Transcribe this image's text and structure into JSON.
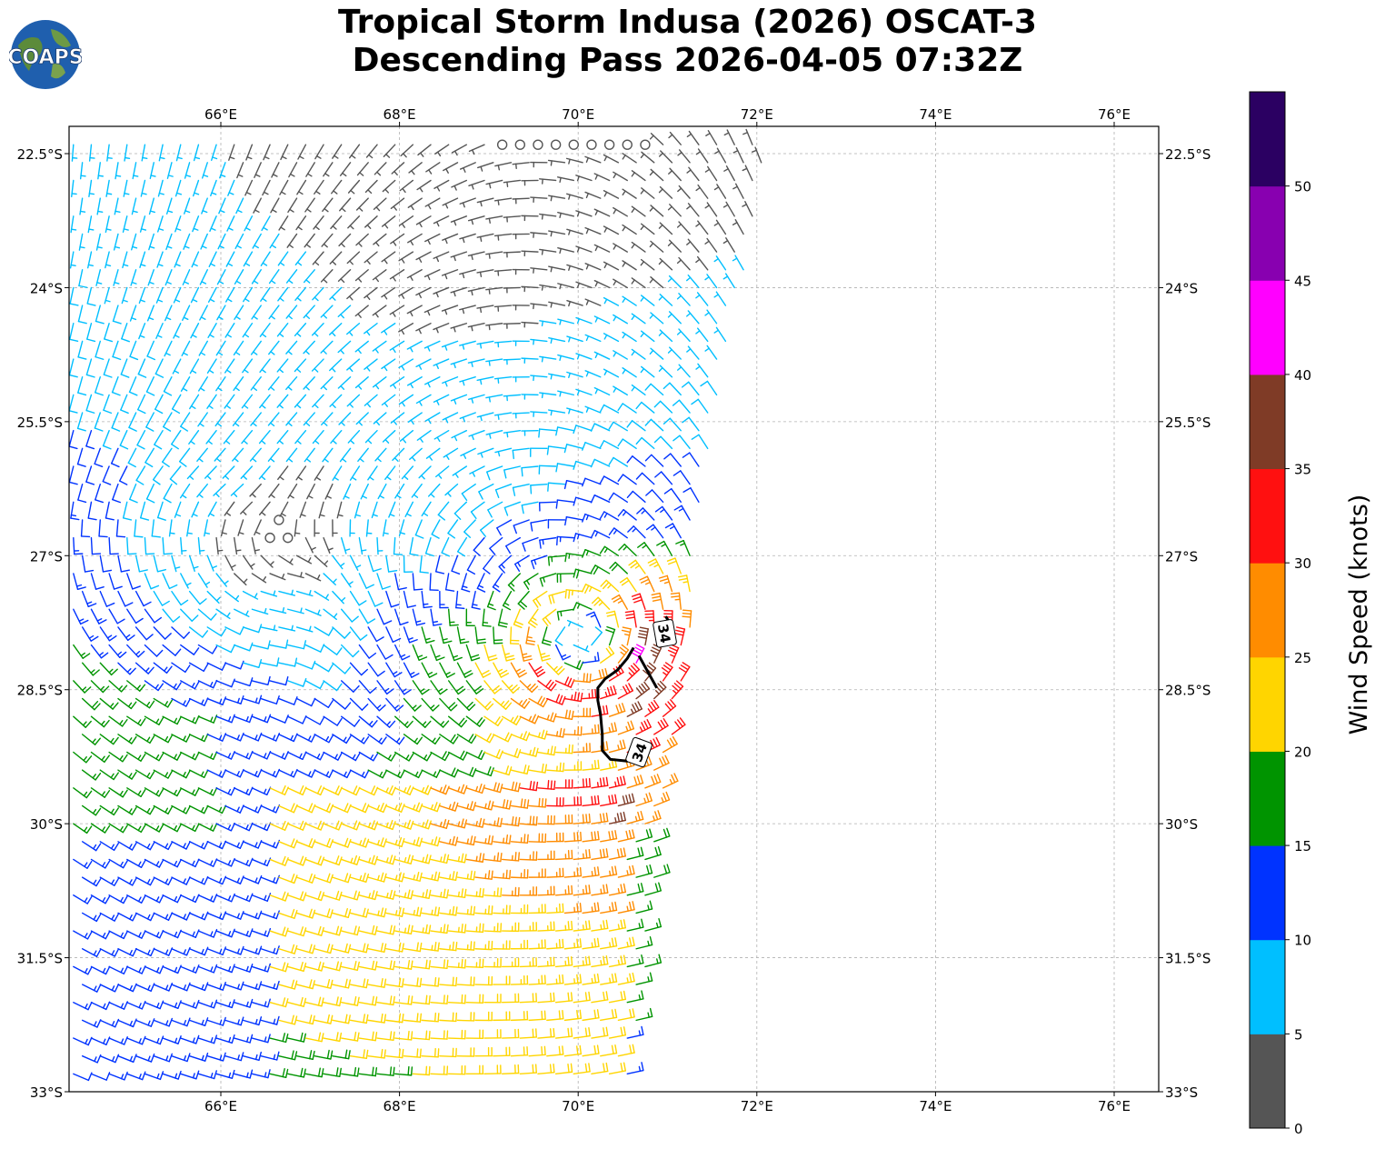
{
  "title": {
    "line1": "Tropical Storm Indusa (2026) OSCAT-3",
    "line2": "Descending Pass 2026-04-05 07:32Z"
  },
  "logo": {
    "text": "COAPS"
  },
  "axes": {
    "lon_ticks": [
      "66°E",
      "68°E",
      "70°E",
      "72°E",
      "74°E",
      "76°E"
    ],
    "lat_ticks": [
      "22.5°S",
      "24°S",
      "25.5°S",
      "27°S",
      "28.5°S",
      "30°S",
      "31.5°S",
      "33°S"
    ],
    "lon_range": [
      64.3,
      76.5
    ],
    "lat_range": [
      -33,
      -22.2
    ],
    "grid": true
  },
  "colorbar": {
    "label": "Wind Speed (knots)",
    "ticks": [
      "0",
      "5",
      "10",
      "15",
      "20",
      "25",
      "30",
      "35",
      "40",
      "45",
      "50"
    ],
    "bins": [
      {
        "min": 0,
        "max": 5,
        "color": "#555555"
      },
      {
        "min": 5,
        "max": 10,
        "color": "#00bfff"
      },
      {
        "min": 10,
        "max": 15,
        "color": "#0033ff"
      },
      {
        "min": 15,
        "max": 20,
        "color": "#009400"
      },
      {
        "min": 20,
        "max": 25,
        "color": "#ffd500"
      },
      {
        "min": 25,
        "max": 30,
        "color": "#ff8c00"
      },
      {
        "min": 30,
        "max": 35,
        "color": "#ff1010"
      },
      {
        "min": 35,
        "max": 40,
        "color": "#7f3b26"
      },
      {
        "min": 40,
        "max": 45,
        "color": "#ff00ff"
      },
      {
        "min": 45,
        "max": 50,
        "color": "#8800b0"
      },
      {
        "min": 50,
        "max": 55,
        "color": "#2b0062"
      }
    ]
  },
  "contour": {
    "level": "34",
    "labels": [
      "34",
      "34"
    ],
    "points": [
      [
        70.62,
        -28.03
      ],
      [
        70.55,
        -28.15
      ],
      [
        70.44,
        -28.28
      ],
      [
        70.3,
        -28.38
      ],
      [
        70.22,
        -28.48
      ],
      [
        70.22,
        -28.62
      ],
      [
        70.25,
        -28.78
      ],
      [
        70.27,
        -29.0
      ],
      [
        70.27,
        -29.18
      ],
      [
        70.36,
        -29.28
      ],
      [
        70.56,
        -29.3
      ]
    ],
    "segment": [
      [
        70.68,
        -28.12
      ],
      [
        70.78,
        -28.3
      ],
      [
        70.88,
        -28.48
      ]
    ],
    "tail": [
      [
        70.98,
        -27.68
      ],
      [
        71.03,
        -27.76
      ]
    ]
  },
  "swath": {
    "east_edge": [
      [
        72.15,
        -22.2
      ],
      [
        71.95,
        -23.5
      ],
      [
        71.7,
        -24.6
      ],
      [
        71.5,
        -25.8
      ],
      [
        71.3,
        -27.0
      ],
      [
        71.25,
        -28.0
      ],
      [
        71.2,
        -28.6
      ],
      [
        71.05,
        -29.2
      ],
      [
        70.95,
        -29.8
      ],
      [
        70.9,
        -30.4
      ],
      [
        70.85,
        -31.0
      ],
      [
        70.78,
        -31.5
      ],
      [
        70.7,
        -32.2
      ],
      [
        70.6,
        -32.9
      ]
    ]
  },
  "storm": {
    "center": [
      70.05,
      -28.0
    ]
  }
}
